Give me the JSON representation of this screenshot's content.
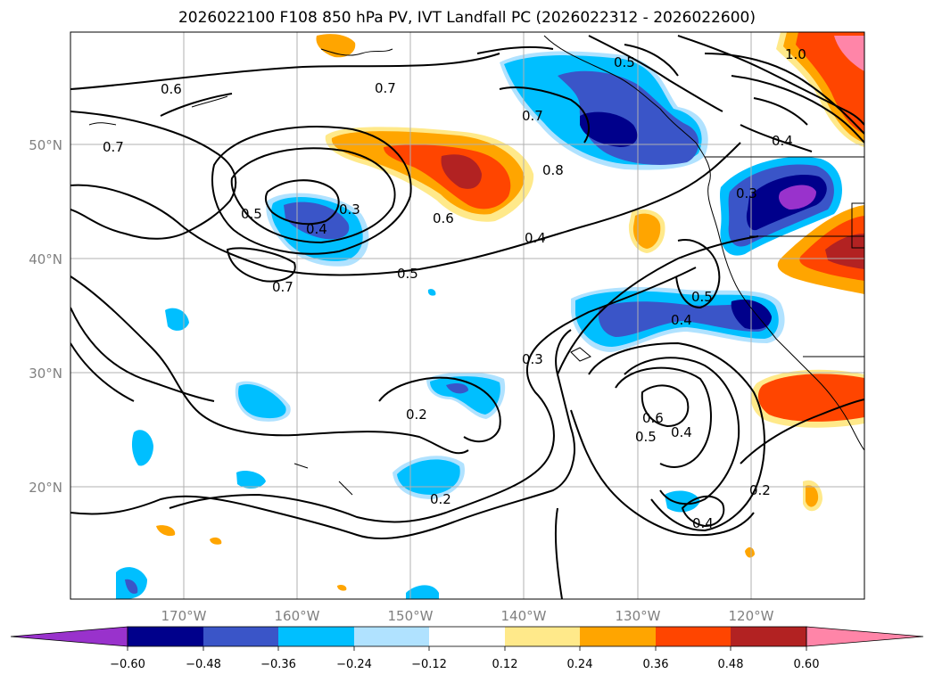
{
  "title": "2026022100 F108 850 hPa PV, IVT Landfall PC (2026022312 - 2026022600)",
  "lat_labels": [
    "50°N",
    "40°N",
    "30°N",
    "20°N"
  ],
  "lon_labels": [
    "170°W",
    "160°W",
    "150°W",
    "140°W",
    "130°W",
    "120°W"
  ],
  "colorbar": {
    "ticks": [
      "−0.60",
      "−0.48",
      "−0.36",
      "−0.24",
      "−0.12",
      "0.12",
      "0.24",
      "0.36",
      "0.48",
      "0.60"
    ],
    "colors": [
      "#9932cc",
      "#00008b",
      "#3a55c8",
      "#00bfff",
      "#b0e2ff",
      "#ffffff",
      "#ffe98a",
      "#ffa500",
      "#ff4500",
      "#b22222",
      "#ff85a8"
    ]
  },
  "contour_labels": [
    "1.0",
    "0.8",
    "0.7",
    "0.6",
    "0.5",
    "0.4",
    "0.3",
    "0.2"
  ]
}
